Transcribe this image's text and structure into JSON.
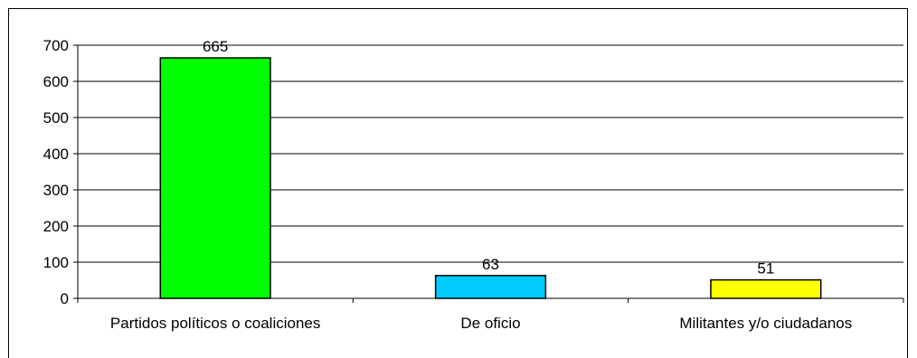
{
  "chart_data": {
    "type": "bar",
    "categories": [
      "Partidos políticos o coaliciones",
      "De oficio",
      "Militantes y/o ciudadanos"
    ],
    "values": [
      665,
      63,
      51
    ],
    "data_labels": [
      "665",
      "63",
      "51"
    ],
    "bar_colors": [
      "#00ff00",
      "#00ccff",
      "#ffff00"
    ],
    "ylim": [
      0,
      700
    ],
    "yticks": [
      0,
      100,
      200,
      300,
      400,
      500,
      600,
      700
    ],
    "grid": true,
    "legend": "none",
    "title": "",
    "xlabel": "",
    "ylabel": ""
  }
}
